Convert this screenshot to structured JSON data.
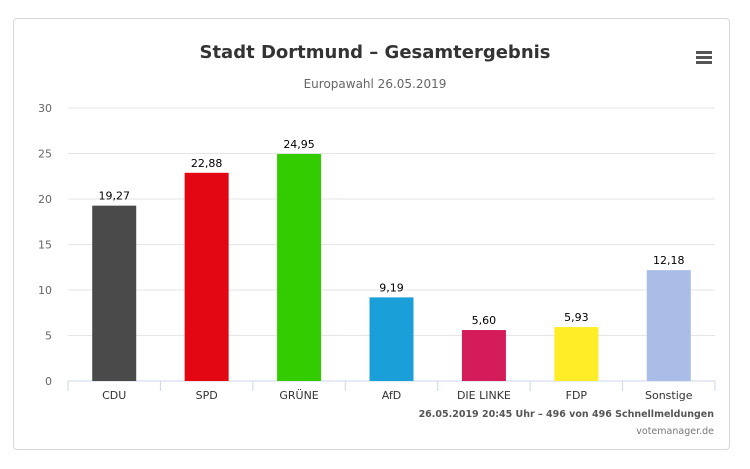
{
  "icons": {
    "menu": "hamburger-menu-icon"
  },
  "chart_data": {
    "type": "bar",
    "title": "Stadt Dortmund – Gesamtergebnis",
    "subtitle": "Europawahl 26.05.2019",
    "categories": [
      "CDU",
      "SPD",
      "GRÜNE",
      "AfD",
      "DIE LINKE",
      "FDP",
      "Sonstige"
    ],
    "values": [
      19.27,
      22.88,
      24.95,
      9.19,
      5.6,
      5.93,
      12.18
    ],
    "value_labels": [
      "19,27",
      "22,88",
      "24,95",
      "9,19",
      "5,60",
      "5,93",
      "12,18"
    ],
    "colors": [
      "#4a4a4a",
      "#e30613",
      "#33cc00",
      "#1b9fd8",
      "#d41c5b",
      "#ffed28",
      "#a9bde6"
    ],
    "ylim": [
      0,
      30
    ],
    "yticks": [
      0,
      5,
      10,
      15,
      20,
      25,
      30
    ],
    "grid": true,
    "legend": "none",
    "xlabel": "",
    "ylabel": ""
  },
  "footer": {
    "status": "26.05.2019 20:45 Uhr – 496 von 496 Schnellmeldungen",
    "source": "votemanager.de"
  }
}
